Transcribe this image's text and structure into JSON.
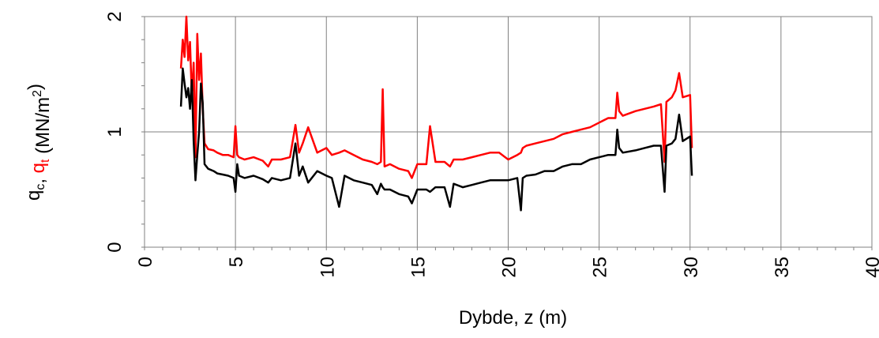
{
  "chart_data": {
    "type": "line",
    "title": "",
    "xlabel": "Dybde, z (m)",
    "ylabel_parts": [
      {
        "text": "q",
        "sub": "c",
        "color": "#000000"
      },
      {
        "text": ", ",
        "sub": "",
        "color": "#000000"
      },
      {
        "text": "q",
        "sub": "t",
        "color": "#ff0000"
      },
      {
        "text": " (MN/m",
        "sup": "2",
        "color": "#000000"
      },
      {
        "text": ")",
        "color": "#000000"
      }
    ],
    "xlim": [
      0,
      40
    ],
    "ylim": [
      0,
      2
    ],
    "x_ticks": [
      0,
      5,
      10,
      15,
      20,
      25,
      30,
      35,
      40
    ],
    "x_tick_labels": [
      "0",
      "5",
      "10",
      "15",
      "20",
      "25",
      "30",
      "35",
      "40"
    ],
    "y_ticks": [
      0,
      1,
      2
    ],
    "y_tick_labels": [
      "0",
      "1",
      "2"
    ],
    "grid": true,
    "legend": "none",
    "series": [
      {
        "color": "#000000",
        "x": [
          2.0,
          2.1,
          2.2,
          2.3,
          2.4,
          2.5,
          2.6,
          2.7,
          2.8,
          2.9,
          3.0,
          3.1,
          3.2,
          3.3,
          3.5,
          3.8,
          4.0,
          4.3,
          4.6,
          4.9,
          5.0,
          5.1,
          5.2,
          5.5,
          6.0,
          6.5,
          6.8,
          7.0,
          7.5,
          8.0,
          8.3,
          8.5,
          8.7,
          9.0,
          9.5,
          10.0,
          10.3,
          10.7,
          11.0,
          11.5,
          12.0,
          12.5,
          12.8,
          13.0,
          13.1,
          13.2,
          13.5,
          14.0,
          14.5,
          14.7,
          15.0,
          15.5,
          15.7,
          16.0,
          16.5,
          16.8,
          17.0,
          17.5,
          18.0,
          18.5,
          19.0,
          19.5,
          20.0,
          20.5,
          20.7,
          20.8,
          21.0,
          21.5,
          22.0,
          22.5,
          23.0,
          23.5,
          24.0,
          24.5,
          25.0,
          25.5,
          25.9,
          26.0,
          26.1,
          26.3,
          27.0,
          27.5,
          28.0,
          28.4,
          28.6,
          28.7,
          29.0,
          29.2,
          29.4,
          29.6,
          30.0,
          30.1
        ],
        "y": [
          1.22,
          1.55,
          1.42,
          1.3,
          1.38,
          1.2,
          1.45,
          0.92,
          0.58,
          0.8,
          1.0,
          1.42,
          1.25,
          0.72,
          0.68,
          0.66,
          0.64,
          0.63,
          0.62,
          0.6,
          0.48,
          0.72,
          0.62,
          0.6,
          0.62,
          0.59,
          0.56,
          0.6,
          0.58,
          0.6,
          0.9,
          0.62,
          0.7,
          0.56,
          0.66,
          0.62,
          0.6,
          0.35,
          0.62,
          0.58,
          0.56,
          0.54,
          0.46,
          0.55,
          0.52,
          0.5,
          0.5,
          0.46,
          0.44,
          0.38,
          0.5,
          0.5,
          0.48,
          0.52,
          0.52,
          0.35,
          0.55,
          0.52,
          0.54,
          0.56,
          0.58,
          0.58,
          0.58,
          0.6,
          0.32,
          0.6,
          0.62,
          0.63,
          0.66,
          0.66,
          0.7,
          0.72,
          0.72,
          0.76,
          0.78,
          0.8,
          0.8,
          1.02,
          0.86,
          0.82,
          0.84,
          0.86,
          0.88,
          0.88,
          0.48,
          0.88,
          0.9,
          0.94,
          1.15,
          0.92,
          0.96,
          0.62
        ]
      },
      {
        "color": "#ff0000",
        "x": [
          2.0,
          2.1,
          2.2,
          2.3,
          2.4,
          2.5,
          2.6,
          2.7,
          2.8,
          2.9,
          3.0,
          3.1,
          3.2,
          3.3,
          3.5,
          3.8,
          4.0,
          4.3,
          4.6,
          4.9,
          5.0,
          5.1,
          5.2,
          5.5,
          6.0,
          6.5,
          6.8,
          7.0,
          7.5,
          8.0,
          8.3,
          8.5,
          8.7,
          9.0,
          9.5,
          10.0,
          10.3,
          10.7,
          11.0,
          11.5,
          12.0,
          12.5,
          12.8,
          13.0,
          13.1,
          13.2,
          13.5,
          14.0,
          14.5,
          14.7,
          15.0,
          15.5,
          15.7,
          16.0,
          16.5,
          16.8,
          17.0,
          17.5,
          18.0,
          18.5,
          19.0,
          19.5,
          20.0,
          20.5,
          20.7,
          20.8,
          21.0,
          21.5,
          22.0,
          22.5,
          23.0,
          23.5,
          24.0,
          24.5,
          25.0,
          25.5,
          25.9,
          26.0,
          26.1,
          26.3,
          27.0,
          27.5,
          28.0,
          28.4,
          28.6,
          28.7,
          29.0,
          29.2,
          29.4,
          29.6,
          30.0,
          30.1
        ],
        "y": [
          1.55,
          1.8,
          1.65,
          2.0,
          1.62,
          1.78,
          1.3,
          1.6,
          0.78,
          1.85,
          1.45,
          1.68,
          1.2,
          0.9,
          0.85,
          0.84,
          0.82,
          0.8,
          0.8,
          0.78,
          1.05,
          0.8,
          0.78,
          0.76,
          0.78,
          0.75,
          0.7,
          0.76,
          0.76,
          0.78,
          1.06,
          0.82,
          0.9,
          1.04,
          0.82,
          0.86,
          0.8,
          0.82,
          0.84,
          0.8,
          0.76,
          0.74,
          0.72,
          0.74,
          1.37,
          0.7,
          0.72,
          0.68,
          0.66,
          0.6,
          0.72,
          0.72,
          1.05,
          0.74,
          0.74,
          0.7,
          0.76,
          0.76,
          0.78,
          0.8,
          0.82,
          0.82,
          0.76,
          0.8,
          0.82,
          0.86,
          0.88,
          0.9,
          0.92,
          0.94,
          0.98,
          1.0,
          1.02,
          1.04,
          1.08,
          1.12,
          1.12,
          1.34,
          1.18,
          1.14,
          1.18,
          1.2,
          1.22,
          1.24,
          0.74,
          1.26,
          1.3,
          1.36,
          1.51,
          1.3,
          1.32,
          0.86
        ]
      }
    ]
  }
}
